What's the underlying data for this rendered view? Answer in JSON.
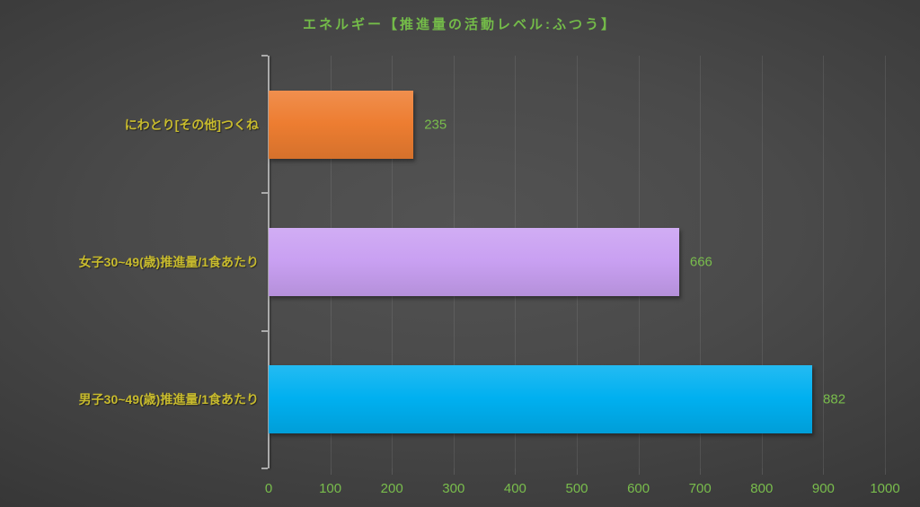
{
  "chart_data": {
    "type": "bar",
    "orientation": "horizontal",
    "title": "エネルギー【推進量の活動レベル:ふつう】",
    "categories": [
      "にわとり[その他]つくね",
      "女子30~49(歳)推進量/1食あたり",
      "男子30~49(歳)推進量/1食あたり"
    ],
    "values": [
      235,
      666,
      882
    ],
    "value_labels": [
      "235",
      "666",
      "882"
    ],
    "bar_colors": [
      "#ED7D31",
      "#C9A0F2",
      "#00B0F0"
    ],
    "xlabel": "",
    "ylabel": "",
    "xlim": [
      0,
      1000
    ],
    "x_ticks": [
      0,
      100,
      200,
      300,
      400,
      500,
      600,
      700,
      800,
      900,
      1000
    ],
    "grid": true,
    "legend": "none",
    "colors": {
      "title": "#74BC49",
      "value_label": "#79BD4C",
      "axis_tick_label": "#79BD4C",
      "category_label": "#C8BB2D",
      "axis_line": "#ABABAB",
      "background_center": "#535353",
      "background_edge": "#262626"
    }
  }
}
